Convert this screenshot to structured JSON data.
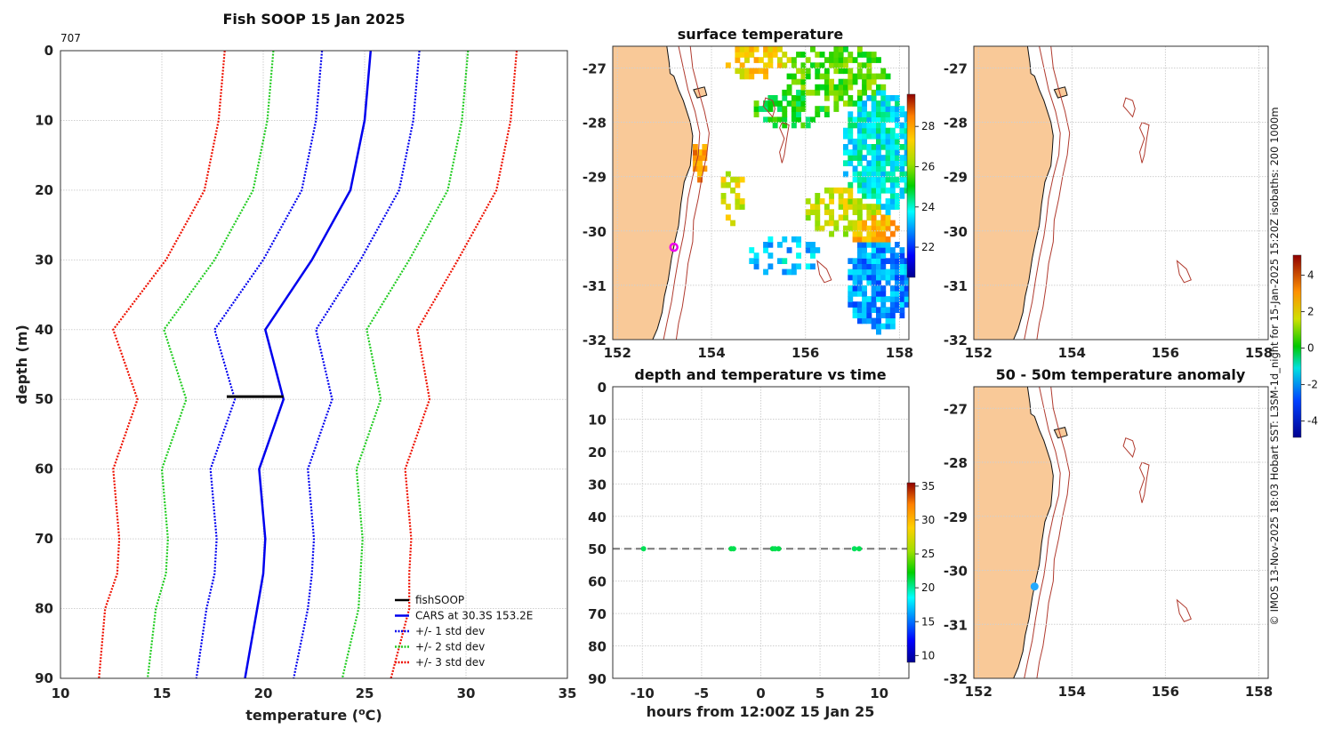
{
  "chart_data": [
    {
      "type": "line",
      "title": "Fish SOOP 15 Jan 2025",
      "id_label": "707",
      "xlabel": "temperature (",
      "xlabel_sup": "o",
      "xlabel_end": "C)",
      "ylabel": "depth (m)",
      "xlim": [
        10,
        35
      ],
      "ylim": [
        0,
        90
      ],
      "x_ticks": [
        "10",
        "15",
        "20",
        "25",
        "30",
        "35"
      ],
      "y_ticks": [
        "0",
        "10",
        "20",
        "30",
        "40",
        "50",
        "60",
        "70",
        "80",
        "90"
      ],
      "depths": [
        0,
        10,
        20,
        30,
        40,
        50,
        60,
        70,
        75,
        80,
        90
      ],
      "cars_mean": [
        25.3,
        25.0,
        24.3,
        22.4,
        20.1,
        21.0,
        19.8,
        20.1,
        20.0,
        19.7,
        19.1
      ],
      "series": [
        {
          "name": "CARS at 30.3S 153.2E",
          "color": "#0000ee",
          "style": "solid",
          "std_mult": 0
        },
        {
          "name": "+/- 1 std dev",
          "color": "#0000ee",
          "style": "dotted",
          "std_mult": 1
        },
        {
          "name": "+/- 2 std dev",
          "color": "#22cc22",
          "style": "dotted",
          "std_mult": 2
        },
        {
          "name": "+/- 3 std dev",
          "color": "#ee1100",
          "style": "dotted",
          "std_mult": 3
        }
      ],
      "std_dev": [
        2.4,
        2.4,
        2.4,
        2.4,
        2.5,
        2.4,
        2.4,
        2.4,
        2.4,
        2.5,
        2.4
      ],
      "fishsoop": {
        "name": "fishSOOP",
        "depth": 49.6,
        "x_start": 18.2,
        "x_end": 21.0,
        "color": "#000000"
      }
    },
    {
      "type": "heatmap",
      "title": "surface temperature",
      "x_ticks": [
        "152",
        "154",
        "156",
        "158"
      ],
      "y_ticks": [
        "-27",
        "-28",
        "-29",
        "-30",
        "-31",
        "-32"
      ],
      "xlim": [
        151.9,
        158.2
      ],
      "ylim": [
        -32,
        -26.6
      ],
      "colorbar_ticks": [
        "28",
        "26",
        "24",
        "22"
      ],
      "colorbar_range": [
        20.5,
        29.6
      ],
      "marker": {
        "lon": 153.2,
        "lat": -30.3,
        "color": "#ee00ee"
      }
    },
    {
      "type": "scatter",
      "title": "depth and temperature vs time",
      "xlabel": "hours from 12:00Z 15 Jan 25",
      "xlim": [
        -12.5,
        12.5
      ],
      "ylim": [
        0,
        90
      ],
      "x_ticks": [
        "-10",
        "-5",
        "0",
        "5",
        "10"
      ],
      "y_ticks": [
        "0",
        "10",
        "20",
        "30",
        "40",
        "50",
        "60",
        "70",
        "80",
        "90"
      ],
      "reference_depth": 50,
      "points": [
        {
          "hour": -9.9,
          "depth": 50,
          "temp": 21.0
        },
        {
          "hour": -2.5,
          "depth": 50,
          "temp": 21.2
        },
        {
          "hour": -2.3,
          "depth": 50,
          "temp": 21.1
        },
        {
          "hour": 1.0,
          "depth": 50,
          "temp": 21.3
        },
        {
          "hour": 1.2,
          "depth": 50,
          "temp": 21.0
        },
        {
          "hour": 1.5,
          "depth": 50,
          "temp": 21.2
        },
        {
          "hour": 7.9,
          "depth": 50,
          "temp": 20.9
        },
        {
          "hour": 8.3,
          "depth": 50,
          "temp": 21.1
        }
      ],
      "colorbar_ticks": [
        "35",
        "30",
        "25",
        "20",
        "15",
        "10"
      ],
      "colorbar_range": [
        9,
        35.5
      ]
    },
    {
      "type": "map",
      "title": "",
      "x_ticks": [
        "152",
        "154",
        "156",
        "158"
      ],
      "y_ticks": [
        "-27",
        "-28",
        "-29",
        "-30",
        "-31",
        "-32"
      ],
      "xlim": [
        151.9,
        158.2
      ],
      "ylim": [
        -32,
        -26.6
      ]
    },
    {
      "type": "map",
      "title": "50 - 50m temperature anomaly",
      "x_ticks": [
        "152",
        "154",
        "156",
        "158"
      ],
      "y_ticks": [
        "-27",
        "-28",
        "-29",
        "-30",
        "-31",
        "-32"
      ],
      "xlim": [
        151.9,
        158.2
      ],
      "ylim": [
        -32,
        -26.6
      ],
      "colorbar_ticks": [
        "4",
        "2",
        "0",
        "-2",
        "-4"
      ],
      "colorbar_range": [
        -4.9,
        5.1
      ],
      "marker": {
        "lon": 153.2,
        "lat": -30.3,
        "color": "#22aaff"
      }
    }
  ],
  "side_text": "© IMOS 13-Nov-2025 18:03 Hobart SST: L3SM-1d_night for 15-Jan-2025 15:20Z isobaths: 200  1000m"
}
